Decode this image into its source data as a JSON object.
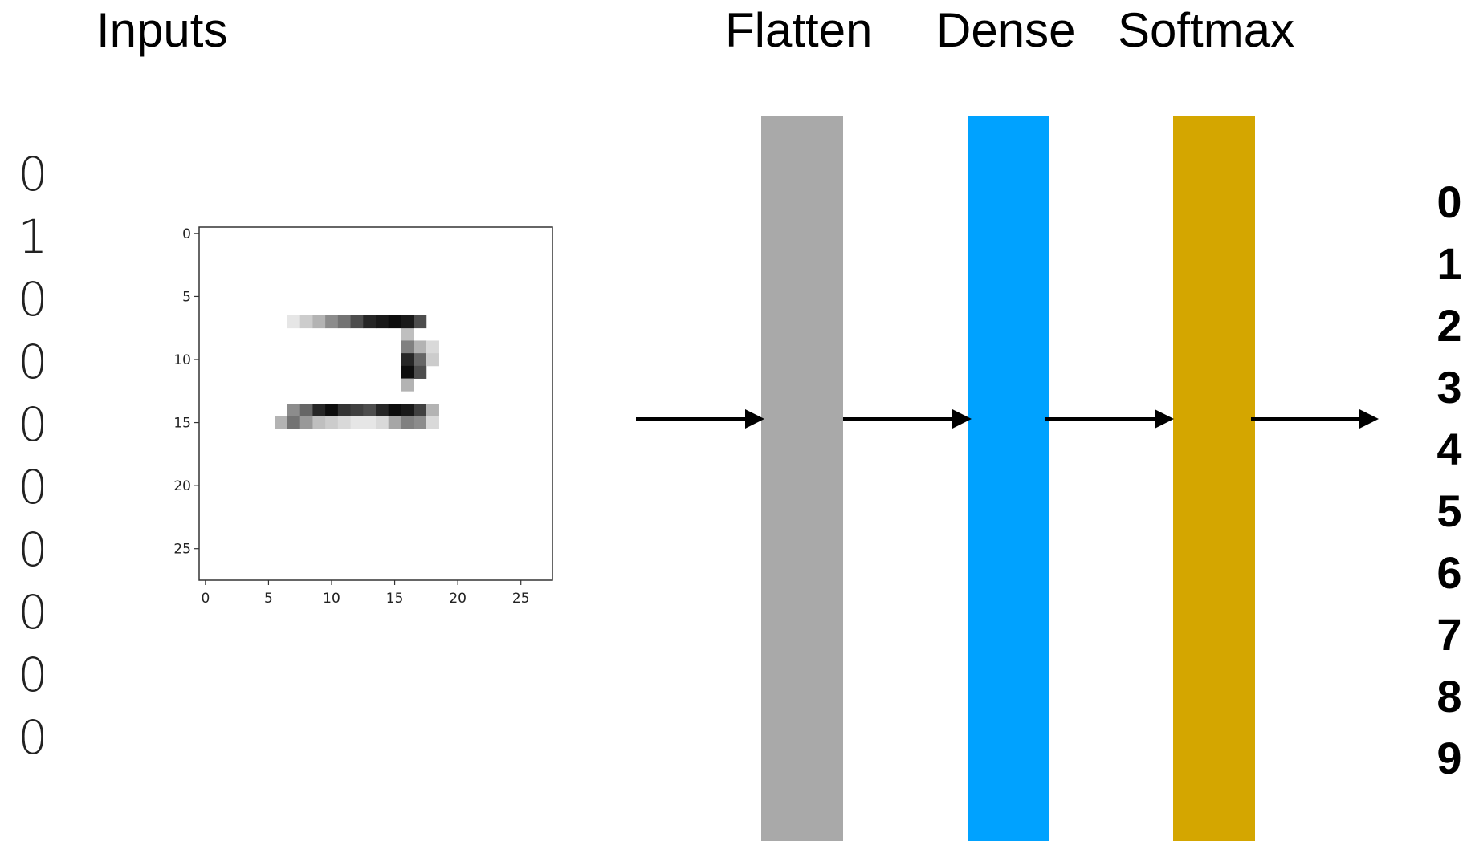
{
  "headers": {
    "inputs": "Inputs",
    "flatten": "Flatten",
    "dense": "Dense",
    "softmax": "Softmax"
  },
  "one_hot": [
    "0",
    "1",
    "0",
    "0",
    "0",
    "0",
    "0",
    "0",
    "0",
    "0"
  ],
  "classes": [
    "0",
    "1",
    "2",
    "3",
    "4",
    "5",
    "6",
    "7",
    "8",
    "9"
  ],
  "layers": [
    {
      "name": "Flatten",
      "color": "#a9a9a9"
    },
    {
      "name": "Dense",
      "color": "#00a2ff"
    },
    {
      "name": "Softmax",
      "color": "#d4a600"
    }
  ],
  "plot": {
    "x_ticks": [
      "0",
      "5",
      "10",
      "15",
      "20",
      "25"
    ],
    "y_ticks": [
      "0",
      "5",
      "10",
      "15",
      "20",
      "25"
    ],
    "grid_size": 28,
    "pixels": [
      [
        7,
        14,
        0.45
      ],
      [
        8,
        14,
        0.6
      ],
      [
        9,
        14,
        0.85
      ],
      [
        10,
        14,
        0.95
      ],
      [
        11,
        14,
        0.8
      ],
      [
        12,
        14,
        0.75
      ],
      [
        13,
        14,
        0.7
      ],
      [
        14,
        14,
        0.85
      ],
      [
        15,
        14,
        0.95
      ],
      [
        16,
        14,
        0.9
      ],
      [
        17,
        14,
        0.75
      ],
      [
        18,
        14,
        0.3
      ],
      [
        6,
        15,
        0.3
      ],
      [
        7,
        15,
        0.55
      ],
      [
        8,
        15,
        0.4
      ],
      [
        9,
        15,
        0.25
      ],
      [
        10,
        15,
        0.2
      ],
      [
        11,
        15,
        0.15
      ],
      [
        12,
        15,
        0.1
      ],
      [
        13,
        15,
        0.1
      ],
      [
        14,
        15,
        0.15
      ],
      [
        15,
        15,
        0.35
      ],
      [
        16,
        15,
        0.5
      ],
      [
        17,
        15,
        0.45
      ],
      [
        18,
        15,
        0.15
      ],
      [
        16,
        8,
        0.25
      ],
      [
        16,
        9,
        0.5
      ],
      [
        16,
        10,
        0.85
      ],
      [
        16,
        11,
        0.95
      ],
      [
        17,
        9,
        0.3
      ],
      [
        17,
        10,
        0.6
      ],
      [
        17,
        11,
        0.7
      ],
      [
        16,
        12,
        0.3
      ],
      [
        18,
        9,
        0.15
      ],
      [
        18,
        10,
        0.2
      ],
      [
        7,
        7,
        0.1
      ],
      [
        8,
        7,
        0.2
      ],
      [
        9,
        7,
        0.3
      ],
      [
        10,
        7,
        0.45
      ],
      [
        11,
        7,
        0.55
      ],
      [
        12,
        7,
        0.7
      ],
      [
        13,
        7,
        0.85
      ],
      [
        14,
        7,
        0.9
      ],
      [
        15,
        7,
        0.95
      ],
      [
        16,
        7,
        0.9
      ],
      [
        17,
        7,
        0.7
      ]
    ]
  }
}
